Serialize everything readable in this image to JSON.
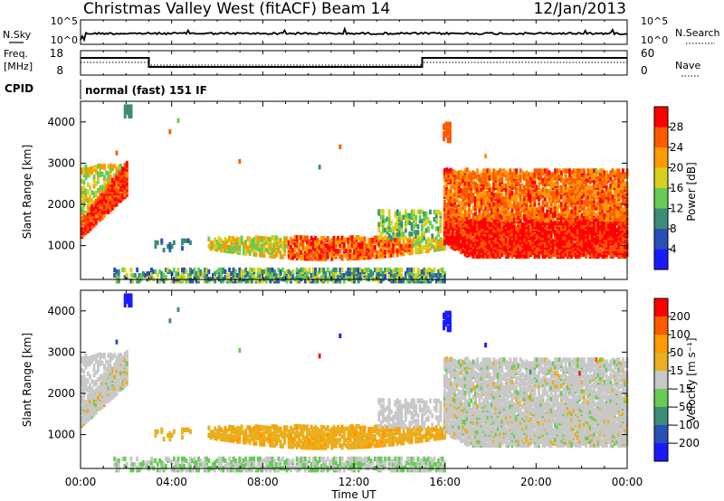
{
  "header": {
    "station": "Christmas Valley West (fitACF)",
    "beam": "Beam 14",
    "date": "12/Jan/2013"
  },
  "top_panels": {
    "nsky_label": "N.Sky",
    "nsearch_label": "N.Search",
    "noise_ticks": [
      "10^5",
      "10^0"
    ],
    "freq_label_line1": "Freq.",
    "freq_label_line2": "[MHz]",
    "freq_ticks": [
      "18",
      "8"
    ],
    "nave_label": "Nave",
    "nave_ticks": [
      "60",
      "0"
    ],
    "cpid_label": "CPID",
    "cpid_text": "normal (fast) 151 IF"
  },
  "chart_data": [
    {
      "type": "heatmap",
      "panel": "power",
      "ylabel": "Slant Range [km]",
      "ylim": [
        180,
        4500
      ],
      "yticks": [
        1000,
        2000,
        3000,
        4000
      ],
      "xlim_hours": [
        0,
        24
      ],
      "colorbar": {
        "label": "Power [dB]",
        "ticks": [
          "4",
          "8",
          "12",
          "16",
          "20",
          "24",
          "28"
        ],
        "colors": [
          "#1a1aff",
          "#2950b8",
          "#3c8c78",
          "#66cc55",
          "#d8d020",
          "#ff9a00",
          "#ff5a00",
          "#ff0000"
        ]
      }
    },
    {
      "type": "heatmap",
      "panel": "velocity",
      "ylabel": "Slant Range [km]",
      "ylim": [
        180,
        4500
      ],
      "yticks": [
        1000,
        2000,
        3000,
        4000
      ],
      "xlabel": "Time UT",
      "x_tick_labels": [
        "00:00",
        "04:00",
        "08:00",
        "12:00",
        "16:00",
        "20:00",
        "00:00"
      ],
      "colorbar": {
        "label": "Velocity [m s⁻¹]",
        "ticks": [
          "200",
          "100",
          "50",
          "15",
          "−15",
          "−50",
          "−100",
          "−200"
        ],
        "colors": [
          "#1a1aff",
          "#2950b8",
          "#3c8c78",
          "#66cc55",
          "#c8c8c8",
          "#e8b020",
          "#ff9a00",
          "#ff5a00",
          "#ff0000"
        ]
      }
    }
  ]
}
